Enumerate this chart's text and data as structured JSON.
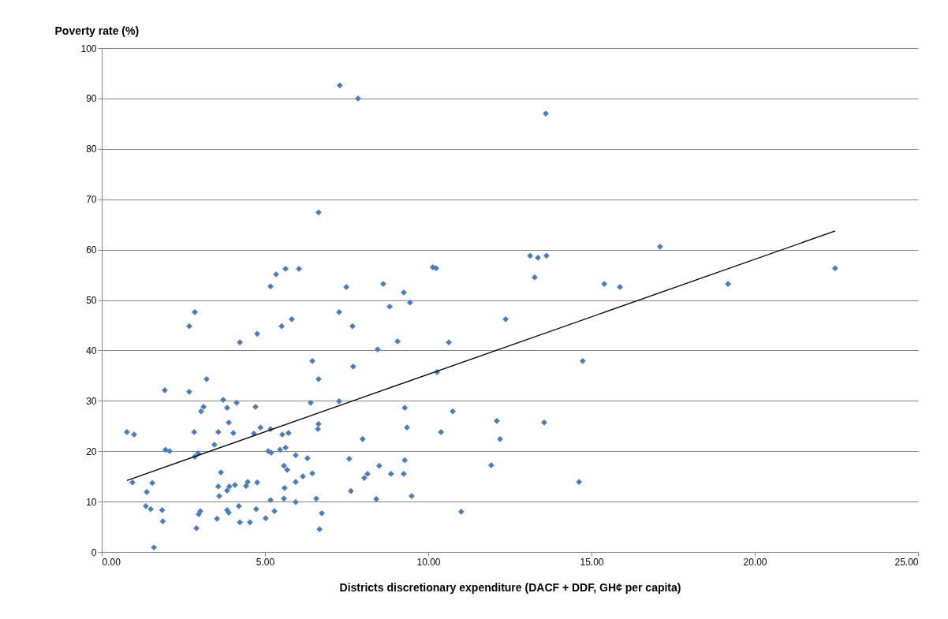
{
  "chart_data": {
    "type": "scatter",
    "xlabel": "Districts discretionary expenditure (DACF + DDF, GH¢ per capita)",
    "ylabel": "Poverty rate (%)",
    "xlim": [
      0,
      25
    ],
    "xticks": [
      {
        "value": 0,
        "label": "0.00"
      },
      {
        "value": 5,
        "label": "5.00"
      },
      {
        "value": 10,
        "label": "10.00"
      },
      {
        "value": 15,
        "label": "15.00"
      },
      {
        "value": 20,
        "label": "20.00"
      },
      {
        "value": 25,
        "label": "25.00"
      }
    ],
    "ylim": [
      0,
      100
    ],
    "yticks": [
      0,
      10,
      20,
      30,
      40,
      50,
      60,
      70,
      80,
      90,
      100
    ],
    "grid": "y",
    "series": [
      {
        "marker": "diamond",
        "color": "#4a7ebb",
        "x": [
          0.77,
          0.99,
          0.94,
          1.93,
          1.95,
          2.08,
          1.55,
          1.35,
          1.5,
          1.38,
          1.85,
          1.87,
          1.6,
          2.68,
          2.68,
          2.85,
          2.83,
          2.85,
          2.95,
          3.04,
          3.12,
          3.21,
          2.97,
          3.02,
          2.9,
          3.45,
          3.57,
          3.57,
          3.6,
          3.53,
          3.65,
          3.72,
          3.84,
          3.89,
          3.84,
          3.91,
          3.89,
          3.84,
          4.03,
          4.08,
          4.13,
          4.2,
          4.23,
          4.23,
          4.42,
          4.47,
          4.54,
          4.66,
          4.71,
          4.73,
          4.76,
          4.76,
          4.86,
          5.02,
          5.1,
          5.17,
          5.19,
          5.17,
          5.17,
          5.29,
          5.34,
          5.46,
          5.51,
          5.53,
          5.58,
          5.63,
          5.63,
          5.6,
          5.58,
          5.68,
          5.72,
          5.82,
          5.94,
          5.94,
          5.94,
          6.04,
          6.16,
          6.3,
          6.4,
          6.45,
          6.45,
          6.64,
          6.57,
          6.62,
          6.64,
          6.64,
          6.67,
          6.74,
          7.29,
          7.85,
          7.27,
          7.27,
          7.49,
          7.58,
          7.63,
          7.68,
          7.7,
          7.99,
          8.04,
          8.14,
          8.41,
          8.45,
          8.5,
          8.62,
          8.82,
          8.86,
          9.06,
          9.25,
          9.28,
          9.28,
          9.25,
          9.35,
          9.44,
          9.49,
          10.14,
          10.24,
          10.27,
          10.39,
          10.63,
          10.75,
          11.01,
          11.93,
          12.1,
          12.2,
          12.37,
          13.12,
          13.26,
          13.36,
          13.62,
          13.6,
          13.55,
          14.62,
          14.73,
          15.39,
          15.87,
          17.1,
          19.18,
          22.46
        ],
        "values": [
          23.8,
          23.3,
          13.8,
          32.1,
          20.3,
          20.0,
          13.7,
          9.1,
          8.5,
          11.9,
          8.3,
          6.1,
          0.9,
          31.8,
          44.8,
          47.6,
          23.8,
          18.9,
          19.6,
          27.9,
          28.8,
          34.3,
          7.5,
          8.1,
          4.7,
          21.3,
          23.8,
          13.0,
          11.1,
          6.6,
          15.8,
          30.2,
          28.6,
          25.7,
          12.2,
          13.0,
          7.8,
          8.3,
          23.6,
          13.3,
          29.6,
          9.1,
          5.9,
          41.6,
          13.1,
          13.9,
          5.9,
          23.5,
          28.8,
          8.5,
          43.3,
          13.8,
          24.7,
          6.7,
          20.0,
          24.4,
          19.7,
          52.7,
          10.3,
          8.1,
          55.1,
          20.3,
          44.8,
          23.3,
          17.1,
          56.2,
          20.7,
          12.7,
          10.6,
          16.3,
          23.6,
          46.2,
          19.2,
          13.9,
          9.9,
          56.2,
          15.0,
          18.6,
          29.6,
          15.6,
          37.9,
          67.4,
          10.6,
          24.4,
          25.4,
          34.3,
          4.5,
          7.7,
          92.6,
          90.0,
          47.6,
          29.9,
          52.6,
          18.5,
          12.1,
          44.8,
          36.8,
          22.4,
          14.7,
          15.5,
          10.5,
          40.2,
          17.1,
          53.2,
          48.7,
          15.5,
          41.8,
          51.5,
          28.6,
          18.2,
          15.5,
          24.7,
          49.5,
          11.1,
          56.5,
          56.3,
          35.7,
          23.8,
          41.6,
          27.9,
          8.0,
          17.2,
          26.0,
          22.4,
          46.2,
          58.8,
          54.5,
          58.4,
          58.8,
          87.0,
          25.7,
          13.9,
          37.9,
          53.2,
          52.6,
          60.6,
          53.2,
          56.3
        ]
      },
      {
        "type": "line",
        "color": "#000000",
        "x": [
          0.77,
          22.46
        ],
        "values": [
          14.2,
          63.7
        ]
      }
    ]
  }
}
